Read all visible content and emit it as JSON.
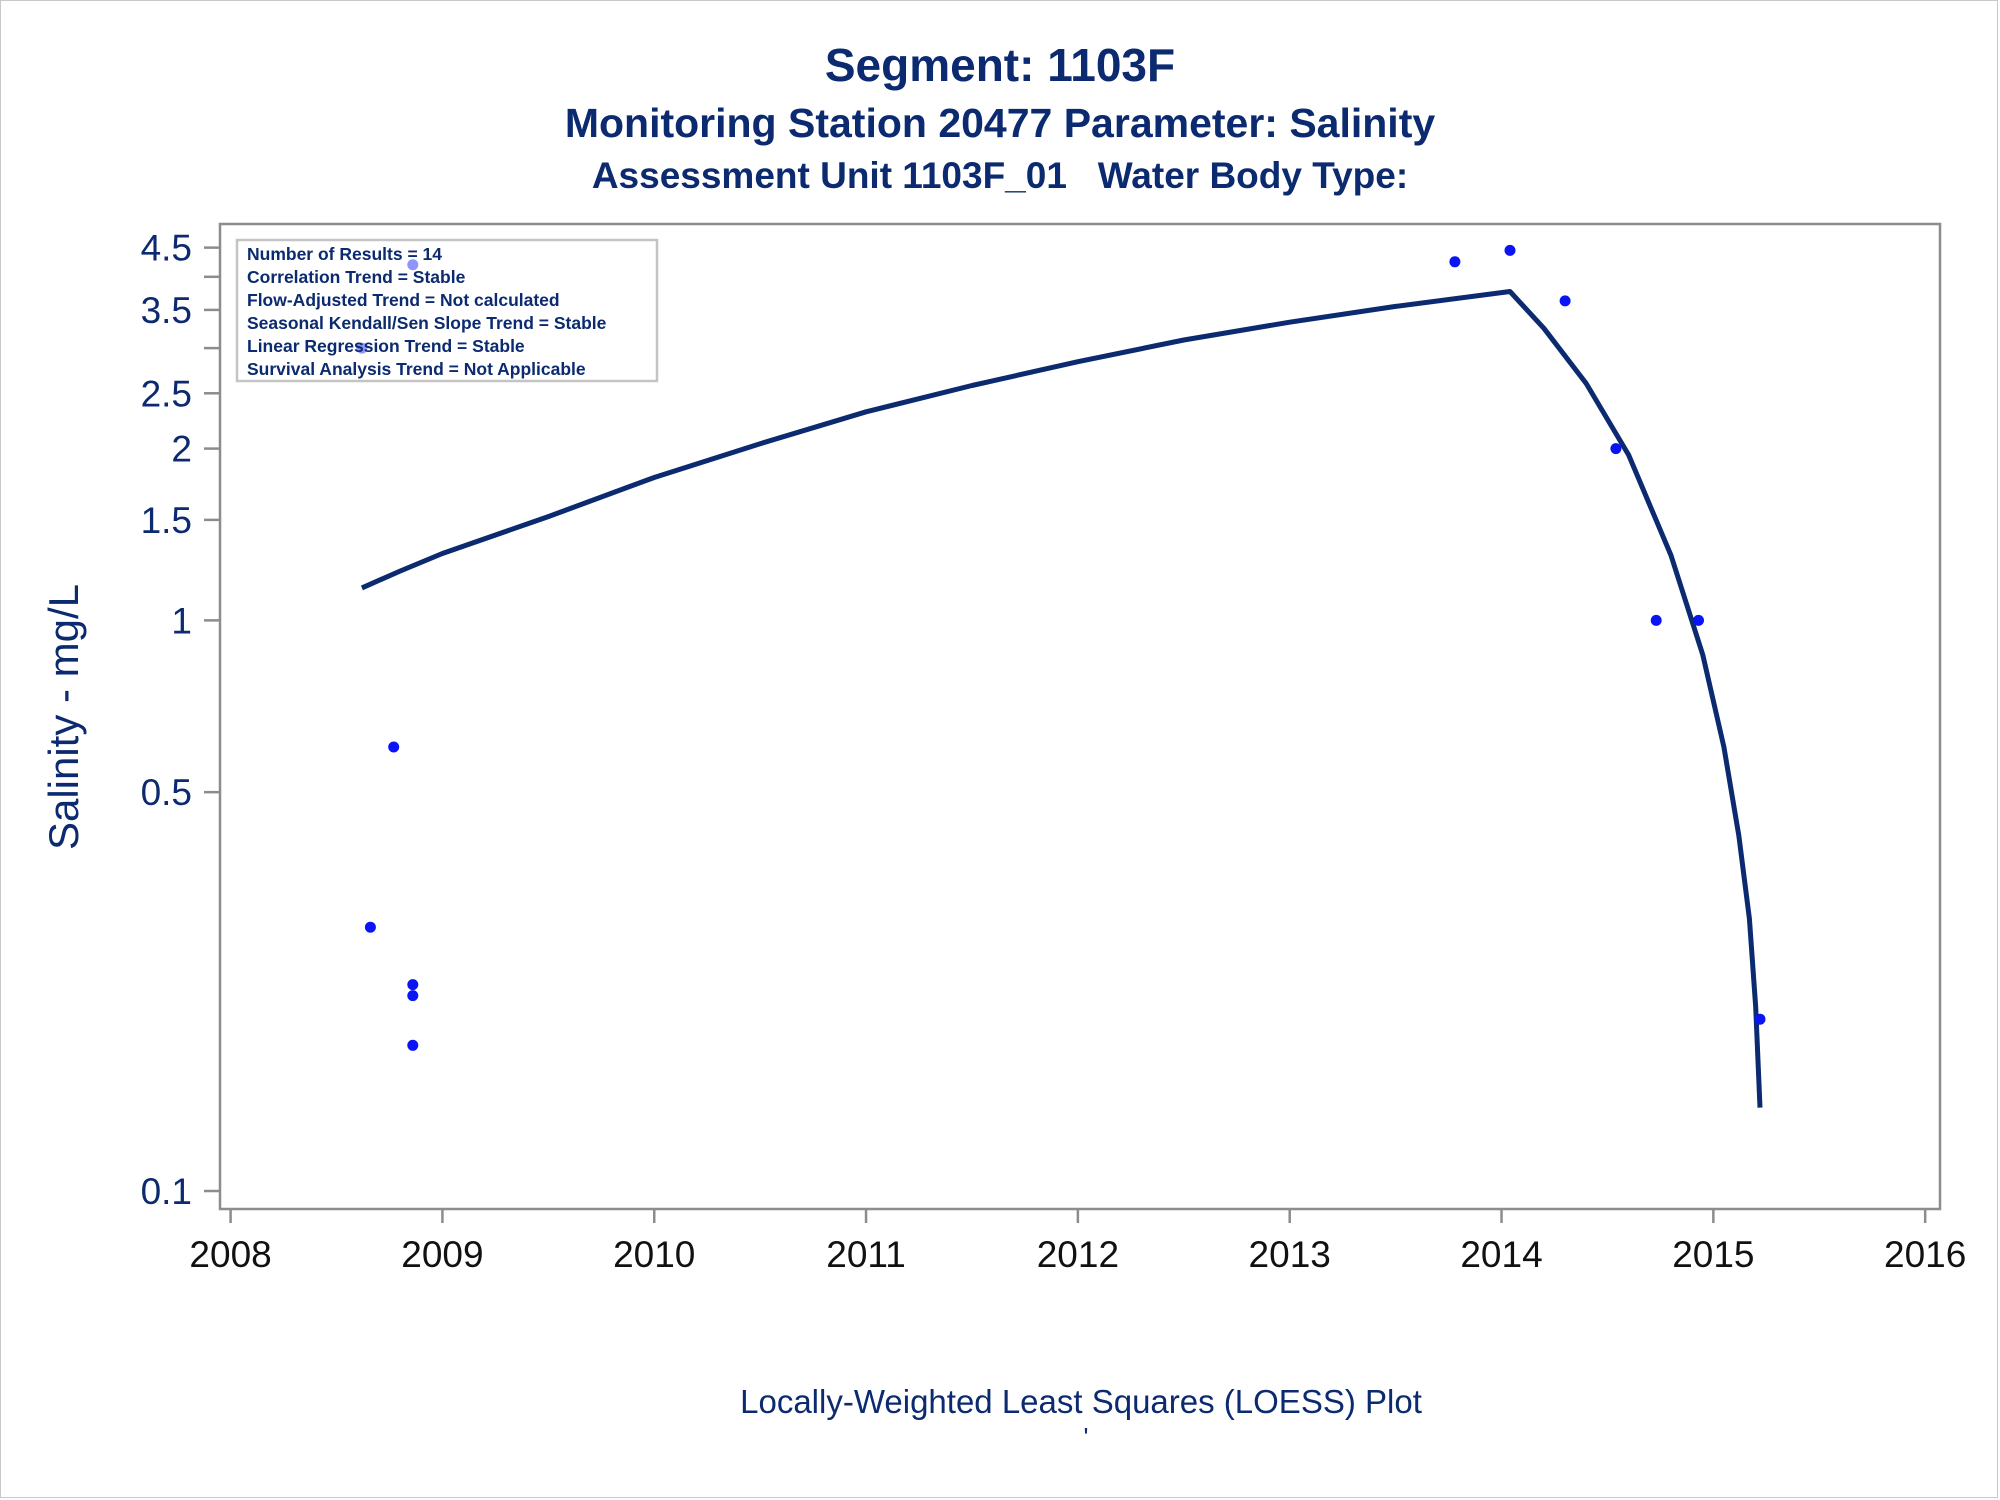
{
  "titles": {
    "line1": "Segment: 1103F",
    "line2": "Monitoring Station 20477 Parameter: Salinity",
    "line3": "Assessment Unit 1103F_01   Water Body Type:"
  },
  "stats_box": {
    "lines": [
      "Number of Results = 14",
      "Correlation Trend = Stable",
      "Flow-Adjusted Trend = Not calculated",
      "Seasonal Kendall/Sen Slope Trend = Stable",
      "Linear Regression Trend = Stable",
      "Survival Analysis Trend = Not Applicable"
    ]
  },
  "footnote": "'",
  "colors": {
    "text": "#0b2a6f",
    "line": "#0b2a6f",
    "points": "#0a14f5",
    "axis": "#8c8c8c"
  },
  "chart_data": {
    "type": "scatter",
    "title": "",
    "xlabel": "Locally-Weighted Least Squares (LOESS) Plot",
    "ylabel": "Salinity - mg/L",
    "x_scale": "linear",
    "y_scale": "log",
    "xlim": [
      2007.95,
      2016.07
    ],
    "ylim": [
      0.093,
      4.95
    ],
    "x_ticks": [
      2008,
      2009,
      2010,
      2011,
      2012,
      2013,
      2014,
      2015,
      2016
    ],
    "x_tick_labels": [
      "2008",
      "2009",
      "2010",
      "2011",
      "2012",
      "2013",
      "2014",
      "2015",
      "2016"
    ],
    "y_ticks": [
      0.1,
      0.5,
      1,
      1.5,
      2,
      2.5,
      3,
      3.5,
      4,
      4.5
    ],
    "y_tick_labels": [
      "0.1",
      "0.5",
      "1",
      "1.5",
      "2",
      "2.5",
      "",
      "3.5",
      "",
      "4.5"
    ],
    "grid": false,
    "series": [
      {
        "kind": "points",
        "points": [
          {
            "x": 2008.62,
            "y": 3.0
          },
          {
            "x": 2008.66,
            "y": 0.29
          },
          {
            "x": 2008.77,
            "y": 0.6
          },
          {
            "x": 2008.86,
            "y": 4.2
          },
          {
            "x": 2008.86,
            "y": 0.23
          },
          {
            "x": 2008.86,
            "y": 0.22
          },
          {
            "x": 2008.86,
            "y": 0.18
          },
          {
            "x": 2013.78,
            "y": 4.25
          },
          {
            "x": 2014.04,
            "y": 4.45
          },
          {
            "x": 2014.3,
            "y": 3.63
          },
          {
            "x": 2014.54,
            "y": 2.0
          },
          {
            "x": 2014.73,
            "y": 1.0
          },
          {
            "x": 2014.93,
            "y": 1.0
          },
          {
            "x": 2015.22,
            "y": 0.2
          }
        ]
      },
      {
        "kind": "line",
        "points": [
          {
            "x": 2008.62,
            "y": 1.14
          },
          {
            "x": 2008.8,
            "y": 1.22
          },
          {
            "x": 2009.0,
            "y": 1.31
          },
          {
            "x": 2009.5,
            "y": 1.52
          },
          {
            "x": 2010.0,
            "y": 1.78
          },
          {
            "x": 2010.5,
            "y": 2.04
          },
          {
            "x": 2011.0,
            "y": 2.32
          },
          {
            "x": 2011.5,
            "y": 2.58
          },
          {
            "x": 2012.0,
            "y": 2.84
          },
          {
            "x": 2012.5,
            "y": 3.1
          },
          {
            "x": 2013.0,
            "y": 3.33
          },
          {
            "x": 2013.5,
            "y": 3.55
          },
          {
            "x": 2014.04,
            "y": 3.77
          },
          {
            "x": 2014.2,
            "y": 3.25
          },
          {
            "x": 2014.4,
            "y": 2.6
          },
          {
            "x": 2014.6,
            "y": 1.95
          },
          {
            "x": 2014.8,
            "y": 1.3
          },
          {
            "x": 2014.95,
            "y": 0.87
          },
          {
            "x": 2015.05,
            "y": 0.6
          },
          {
            "x": 2015.12,
            "y": 0.42
          },
          {
            "x": 2015.17,
            "y": 0.3
          },
          {
            "x": 2015.2,
            "y": 0.21
          },
          {
            "x": 2015.22,
            "y": 0.14
          }
        ]
      }
    ]
  }
}
